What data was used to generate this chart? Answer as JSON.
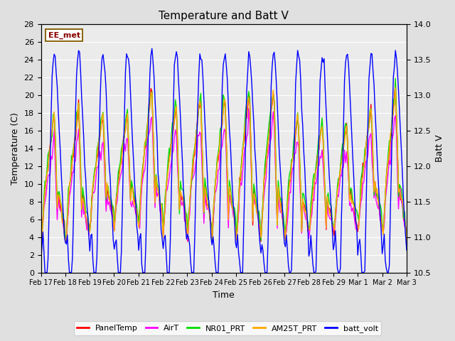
{
  "title": "Temperature and Batt V",
  "xlabel": "Time",
  "ylabel_left": "Temperature (C)",
  "ylabel_right": "Batt V",
  "annotation": "EE_met",
  "ylim_left": [
    0,
    28
  ],
  "ylim_right": [
    10.5,
    14.0
  ],
  "yticks_left": [
    0,
    2,
    4,
    6,
    8,
    10,
    12,
    14,
    16,
    18,
    20,
    22,
    24,
    26,
    28
  ],
  "yticks_right": [
    10.5,
    11.0,
    11.5,
    12.0,
    12.5,
    13.0,
    13.5,
    14.0
  ],
  "xtick_labels": [
    "Feb 17",
    "Feb 18",
    "Feb 19",
    "Feb 20",
    "Feb 21",
    "Feb 22",
    "Feb 23",
    "Feb 24",
    "Feb 25",
    "Feb 26",
    "Feb 27",
    "Feb 28",
    "Feb 29",
    "Mar 1",
    "Mar 2",
    "Mar 3"
  ],
  "bg_color": "#e0e0e0",
  "plot_bg_color": "#ebebeb",
  "grid_color": "#ffffff",
  "series_PanelTemp_color": "#ff0000",
  "series_AirT_color": "#ff00ff",
  "series_NR01_PRT_color": "#00dd00",
  "series_AM25T_PRT_color": "#ffaa00",
  "series_batt_volt_color": "#0000ff",
  "lw": 1.0,
  "legend": [
    {
      "label": "PanelTemp",
      "color": "#ff0000"
    },
    {
      "label": "AirT",
      "color": "#ff00ff"
    },
    {
      "label": "NR01_PRT",
      "color": "#00dd00"
    },
    {
      "label": "AM25T_PRT",
      "color": "#ffaa00"
    },
    {
      "label": "batt_volt",
      "color": "#0000ff"
    }
  ]
}
